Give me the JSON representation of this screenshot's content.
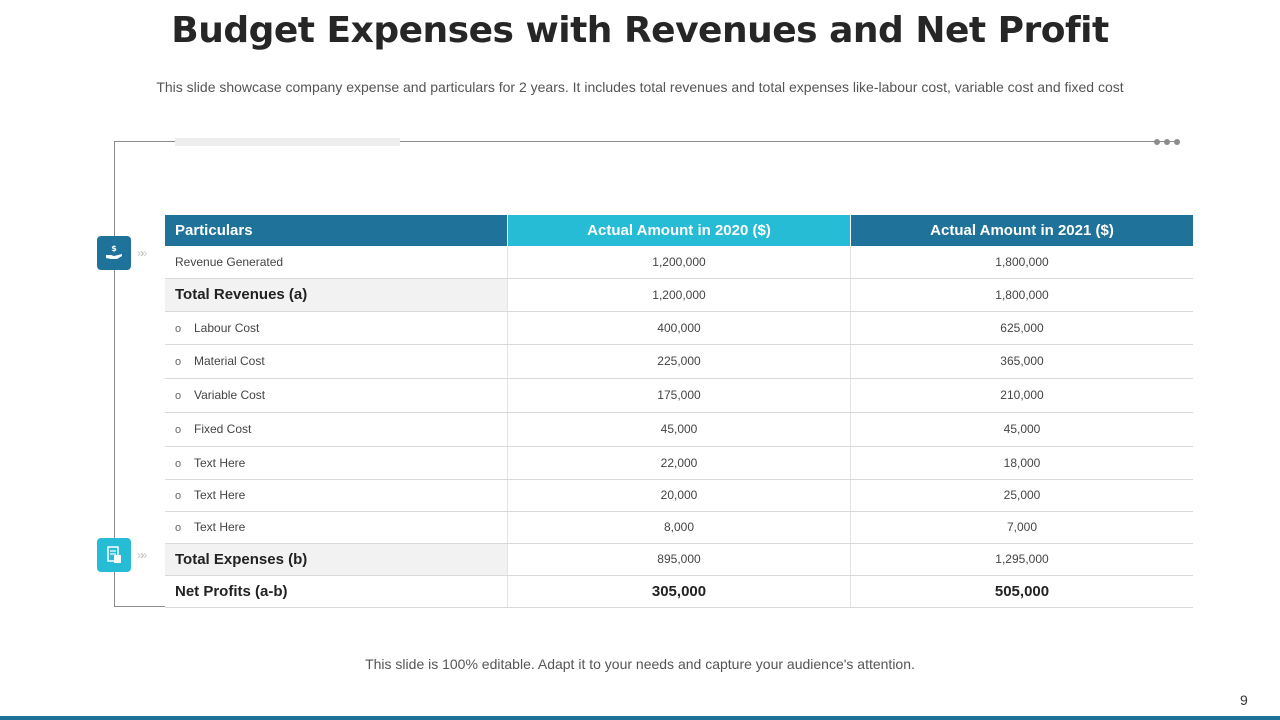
{
  "slide": {
    "title": "Budget Expenses with Revenues and Net Profit",
    "subtitle": "This slide showcase company expense and particulars for 2 years. It includes total revenues and total expenses like-labour cost, variable cost and fixed cost",
    "footer": "This slide is 100% editable. Adapt it to your needs and capture your audience's attention.",
    "page_number": "9"
  },
  "icons": {
    "revenue": "hand-dollar-icon",
    "expenses": "document-calculator-icon",
    "chevrons": "»»"
  },
  "colors": {
    "primary": "#1f7299",
    "accent": "#27bcd6"
  },
  "table": {
    "headers": [
      "Particulars",
      "Actual Amount in 2020 ($)",
      "Actual Amount in 2021 ($)"
    ],
    "rows": [
      {
        "label": "Revenue  Generated",
        "y2020": "1,200,000",
        "y2021": "1,800,000"
      },
      {
        "label": "Total Revenues (a)",
        "y2020": "1,200,000",
        "y2021": "1,800,000"
      },
      {
        "label": "Labour  Cost",
        "y2020": "400,000",
        "y2021": "625,000"
      },
      {
        "label": "Material Cost",
        "y2020": "225,000",
        "y2021": "365,000"
      },
      {
        "label": "Variable Cost",
        "y2020": "175,000",
        "y2021": "210,000"
      },
      {
        "label": "Fixed Cost",
        "y2020": "45,000",
        "y2021": "45,000"
      },
      {
        "label": "Text Here",
        "y2020": "22,000",
        "y2021": "18,000"
      },
      {
        "label": "Text Here",
        "y2020": "20,000",
        "y2021": "25,000"
      },
      {
        "label": "Text Here",
        "y2020": "8,000",
        "y2021": "7,000"
      },
      {
        "label": "Total Expenses (b)",
        "y2020": "895,000",
        "y2021": "1,295,000"
      },
      {
        "label": "Net Profits (a-b)",
        "y2020": "305,000",
        "y2021": "505,000"
      }
    ],
    "bullet": "o"
  }
}
